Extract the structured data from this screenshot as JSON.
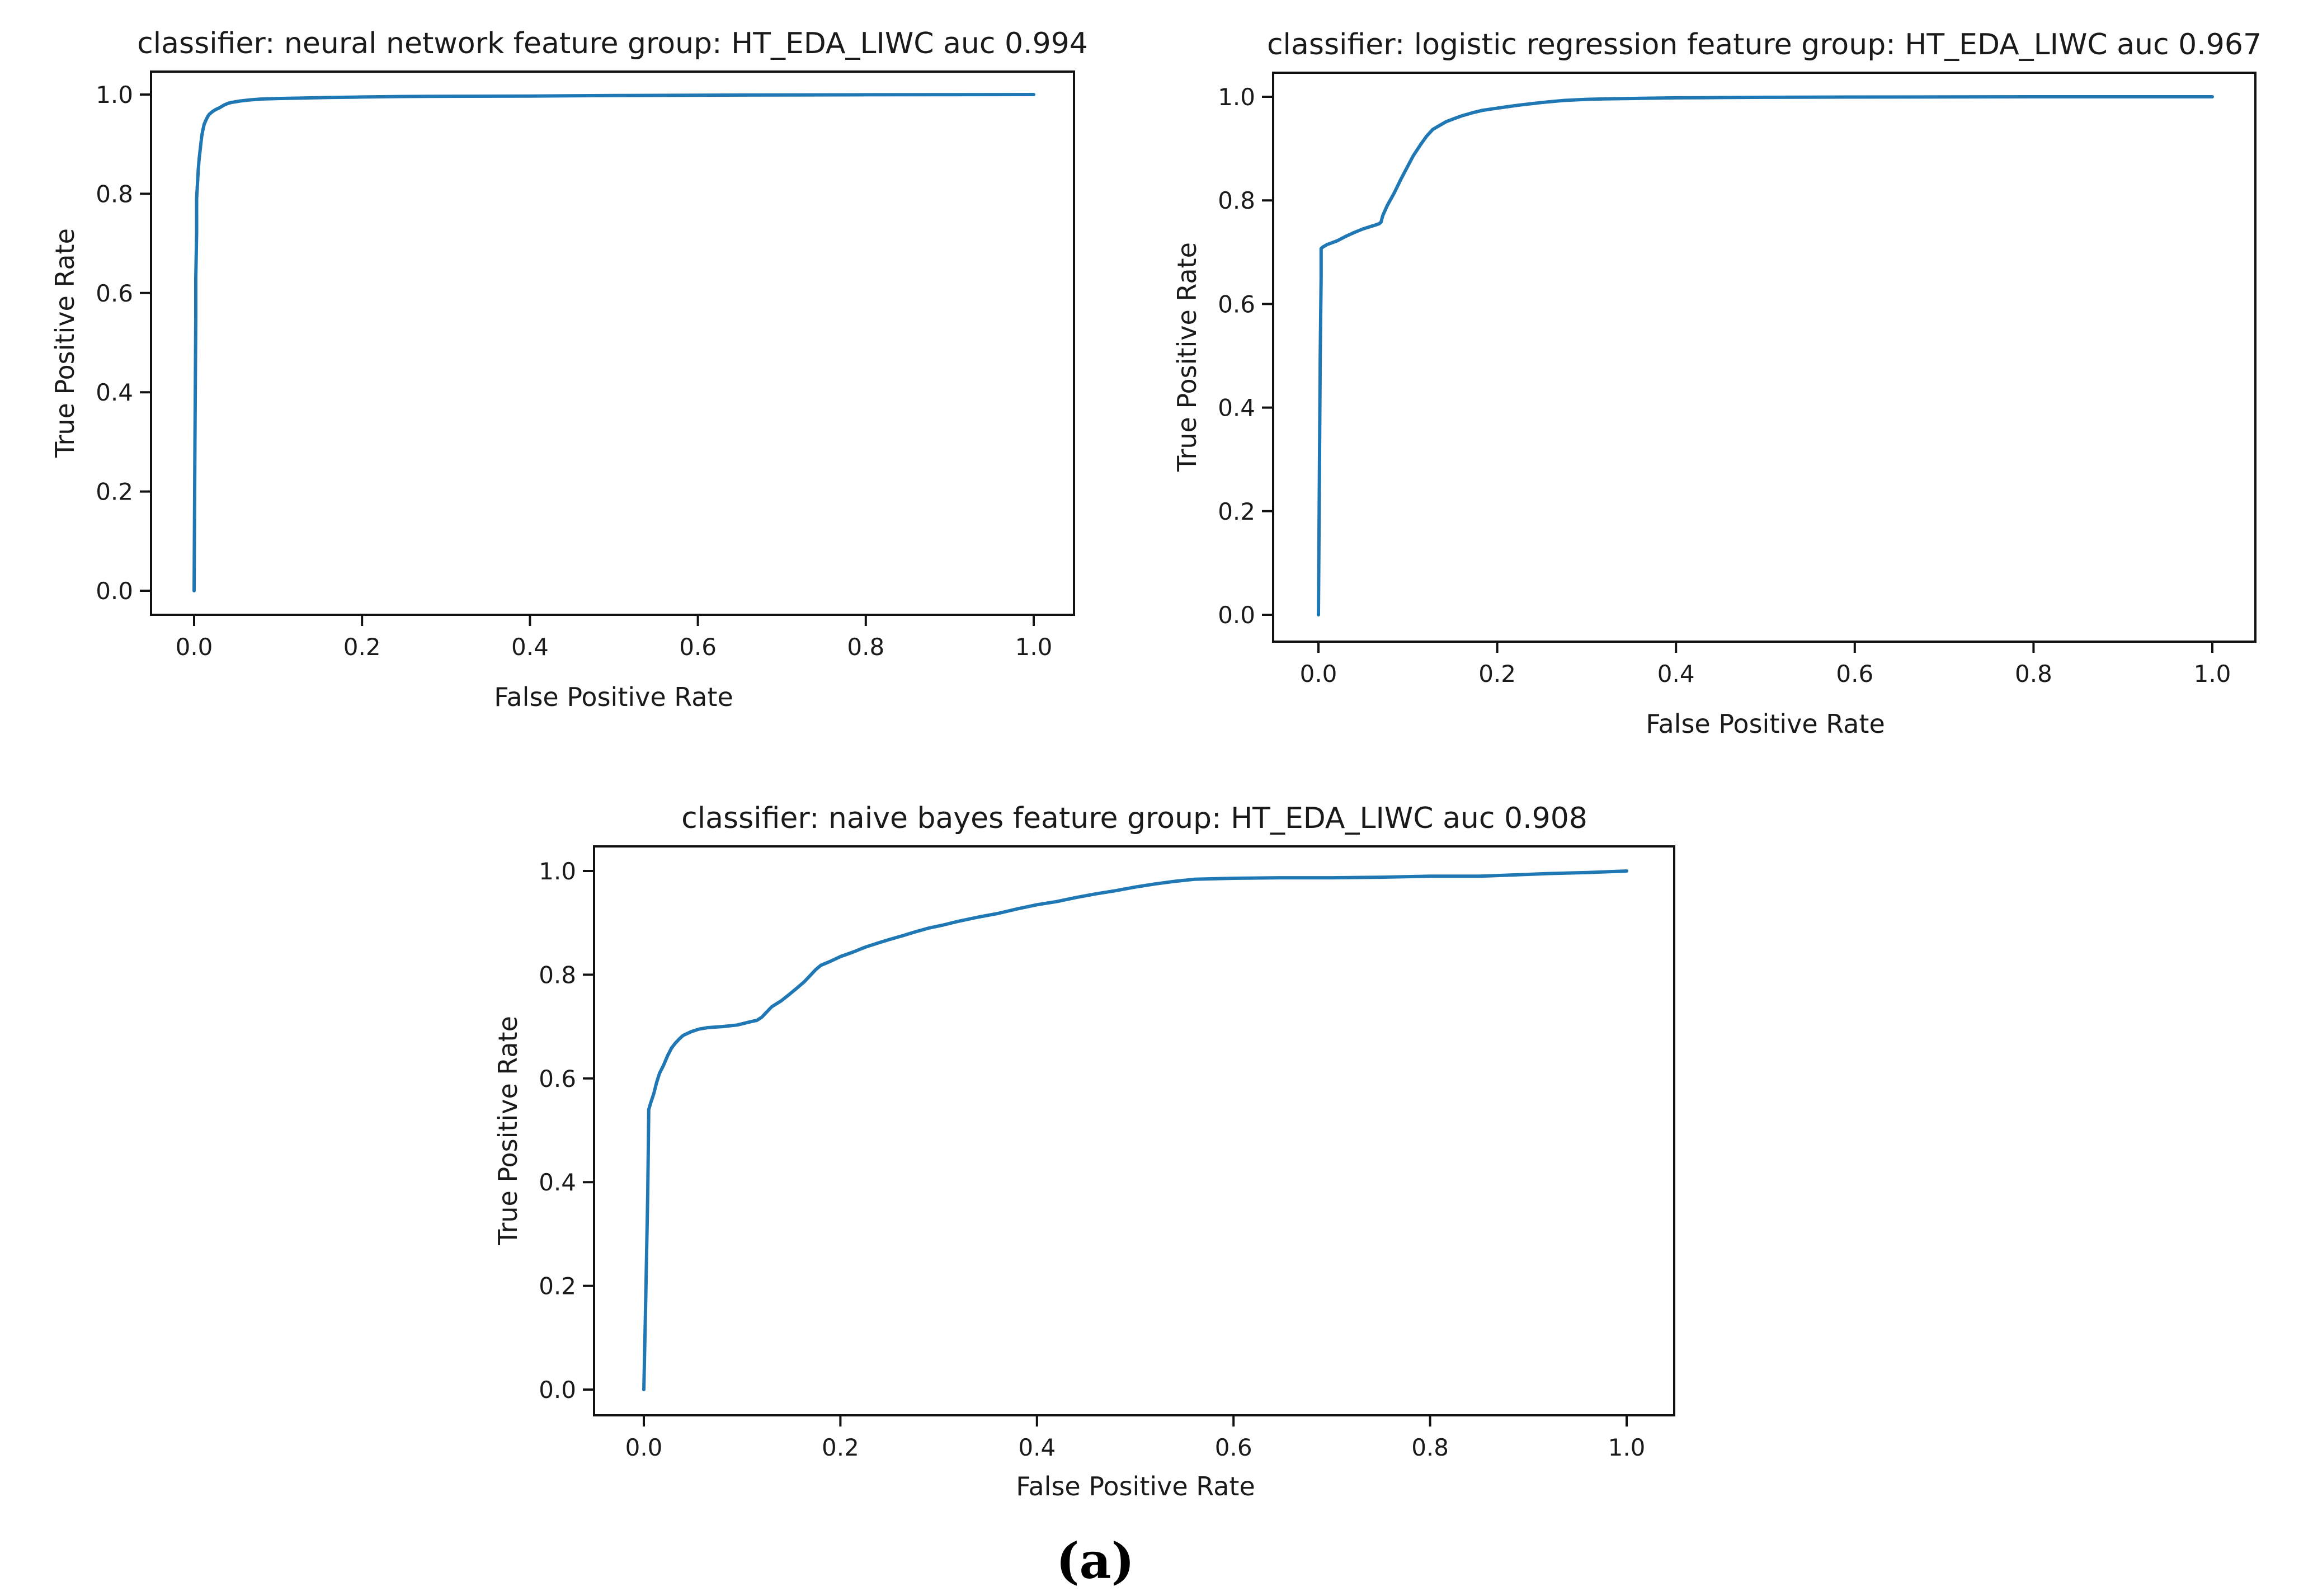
{
  "caption": "(a)",
  "colors": {
    "roc_line": "#1f77b4",
    "axis": "#111111",
    "text": "#1a1a1a",
    "background": "#ffffff"
  },
  "chart_data": [
    {
      "type": "line",
      "title": "classifier: neural network feature group: HT_EDA_LIWC auc 0.994",
      "classifier": "neural network",
      "feature_group": "HT_EDA_LIWC",
      "auc": 0.994,
      "xlabel": "False Positive Rate",
      "ylabel": "True Positive Rate",
      "xlim": [
        -0.05,
        1.05
      ],
      "ylim": [
        -0.05,
        1.05
      ],
      "xticks": [
        0.0,
        0.2,
        0.4,
        0.6,
        0.8,
        1.0
      ],
      "yticks": [
        0.0,
        0.2,
        0.4,
        0.6,
        0.8,
        1.0
      ],
      "grid": false,
      "legend": "none",
      "series": [
        {
          "name": "ROC curve",
          "points": [
            [
              0.0,
              0.0
            ],
            [
              0.001,
              0.3
            ],
            [
              0.002,
              0.55
            ],
            [
              0.002,
              0.63
            ],
            [
              0.003,
              0.72
            ],
            [
              0.003,
              0.79
            ],
            [
              0.004,
              0.82
            ],
            [
              0.005,
              0.85
            ],
            [
              0.006,
              0.87
            ],
            [
              0.007,
              0.885
            ],
            [
              0.008,
              0.9
            ],
            [
              0.009,
              0.915
            ],
            [
              0.01,
              0.925
            ],
            [
              0.012,
              0.94
            ],
            [
              0.014,
              0.948
            ],
            [
              0.016,
              0.955
            ],
            [
              0.018,
              0.96
            ],
            [
              0.02,
              0.963
            ],
            [
              0.023,
              0.967
            ],
            [
              0.026,
              0.97
            ],
            [
              0.03,
              0.973
            ],
            [
              0.033,
              0.976
            ],
            [
              0.036,
              0.979
            ],
            [
              0.04,
              0.982
            ],
            [
              0.044,
              0.984
            ],
            [
              0.048,
              0.985
            ],
            [
              0.055,
              0.987
            ],
            [
              0.065,
              0.989
            ],
            [
              0.08,
              0.991
            ],
            [
              0.1,
              0.992
            ],
            [
              0.13,
              0.993
            ],
            [
              0.16,
              0.994
            ],
            [
              0.2,
              0.995
            ],
            [
              0.25,
              0.996
            ],
            [
              0.3,
              0.9965
            ],
            [
              0.4,
              0.997
            ],
            [
              0.5,
              0.998
            ],
            [
              0.65,
              0.999
            ],
            [
              0.8,
              0.9995
            ],
            [
              1.0,
              1.0
            ]
          ]
        }
      ]
    },
    {
      "type": "line",
      "title": "classifier: logistic regression feature group: HT_EDA_LIWC auc 0.967",
      "classifier": "logistic regression",
      "feature_group": "HT_EDA_LIWC",
      "auc": 0.967,
      "xlabel": "False Positive Rate",
      "ylabel": "True Positive Rate",
      "xlim": [
        -0.05,
        1.05
      ],
      "ylim": [
        -0.05,
        1.05
      ],
      "xticks": [
        0.0,
        0.2,
        0.4,
        0.6,
        0.8,
        1.0
      ],
      "yticks": [
        0.0,
        0.2,
        0.4,
        0.6,
        0.8,
        1.0
      ],
      "grid": false,
      "legend": "none",
      "series": [
        {
          "name": "ROC curve",
          "points": [
            [
              0.0,
              0.0
            ],
            [
              0.001,
              0.25
            ],
            [
              0.002,
              0.5
            ],
            [
              0.003,
              0.65
            ],
            [
              0.003,
              0.707
            ],
            [
              0.005,
              0.71
            ],
            [
              0.01,
              0.715
            ],
            [
              0.015,
              0.718
            ],
            [
              0.021,
              0.722
            ],
            [
              0.03,
              0.73
            ],
            [
              0.04,
              0.738
            ],
            [
              0.05,
              0.745
            ],
            [
              0.063,
              0.752
            ],
            [
              0.068,
              0.755
            ],
            [
              0.07,
              0.758
            ],
            [
              0.072,
              0.771
            ],
            [
              0.077,
              0.79
            ],
            [
              0.085,
              0.815
            ],
            [
              0.092,
              0.84
            ],
            [
              0.099,
              0.863
            ],
            [
              0.106,
              0.886
            ],
            [
              0.114,
              0.907
            ],
            [
              0.121,
              0.924
            ],
            [
              0.128,
              0.937
            ],
            [
              0.136,
              0.945
            ],
            [
              0.143,
              0.952
            ],
            [
              0.152,
              0.958
            ],
            [
              0.16,
              0.963
            ],
            [
              0.172,
              0.969
            ],
            [
              0.184,
              0.974
            ],
            [
              0.196,
              0.977
            ],
            [
              0.208,
              0.98
            ],
            [
              0.225,
              0.984
            ],
            [
              0.25,
              0.989
            ],
            [
              0.275,
              0.993
            ],
            [
              0.3,
              0.995
            ],
            [
              0.32,
              0.996
            ],
            [
              0.36,
              0.997
            ],
            [
              0.4,
              0.998
            ],
            [
              0.45,
              0.9985
            ],
            [
              0.5,
              0.999
            ],
            [
              0.6,
              0.9995
            ],
            [
              0.8,
              1.0
            ],
            [
              1.0,
              1.0
            ]
          ]
        }
      ]
    },
    {
      "type": "line",
      "title": "classifier: naive bayes feature group: HT_EDA_LIWC auc 0.908",
      "classifier": "naive bayes",
      "feature_group": "HT_EDA_LIWC",
      "auc": 0.908,
      "xlabel": "False Positive Rate",
      "ylabel": "True Positive Rate",
      "xlim": [
        -0.05,
        1.05
      ],
      "ylim": [
        -0.05,
        1.05
      ],
      "xticks": [
        0.0,
        0.2,
        0.4,
        0.6,
        0.8,
        1.0
      ],
      "yticks": [
        0.0,
        0.2,
        0.4,
        0.6,
        0.8,
        1.0
      ],
      "grid": false,
      "legend": "none",
      "series": [
        {
          "name": "ROC curve",
          "points": [
            [
              0.0,
              0.0
            ],
            [
              0.002,
              0.18
            ],
            [
              0.004,
              0.38
            ],
            [
              0.005,
              0.54
            ],
            [
              0.007,
              0.553
            ],
            [
              0.01,
              0.57
            ],
            [
              0.013,
              0.592
            ],
            [
              0.016,
              0.61
            ],
            [
              0.02,
              0.625
            ],
            [
              0.024,
              0.643
            ],
            [
              0.028,
              0.658
            ],
            [
              0.032,
              0.668
            ],
            [
              0.036,
              0.676
            ],
            [
              0.04,
              0.683
            ],
            [
              0.048,
              0.69
            ],
            [
              0.056,
              0.695
            ],
            [
              0.065,
              0.698
            ],
            [
              0.08,
              0.7
            ],
            [
              0.095,
              0.703
            ],
            [
              0.11,
              0.71
            ],
            [
              0.115,
              0.712
            ],
            [
              0.12,
              0.718
            ],
            [
              0.125,
              0.728
            ],
            [
              0.13,
              0.738
            ],
            [
              0.135,
              0.744
            ],
            [
              0.14,
              0.75
            ],
            [
              0.148,
              0.762
            ],
            [
              0.155,
              0.773
            ],
            [
              0.163,
              0.786
            ],
            [
              0.17,
              0.8
            ],
            [
              0.175,
              0.81
            ],
            [
              0.18,
              0.818
            ],
            [
              0.19,
              0.826
            ],
            [
              0.2,
              0.835
            ],
            [
              0.212,
              0.843
            ],
            [
              0.225,
              0.853
            ],
            [
              0.238,
              0.861
            ],
            [
              0.25,
              0.868
            ],
            [
              0.263,
              0.875
            ],
            [
              0.275,
              0.882
            ],
            [
              0.29,
              0.89
            ],
            [
              0.305,
              0.896
            ],
            [
              0.32,
              0.903
            ],
            [
              0.34,
              0.911
            ],
            [
              0.36,
              0.918
            ],
            [
              0.38,
              0.927
            ],
            [
              0.4,
              0.935
            ],
            [
              0.42,
              0.941
            ],
            [
              0.44,
              0.949
            ],
            [
              0.46,
              0.956
            ],
            [
              0.48,
              0.962
            ],
            [
              0.5,
              0.969
            ],
            [
              0.52,
              0.975
            ],
            [
              0.54,
              0.98
            ],
            [
              0.56,
              0.984
            ],
            [
              0.6,
              0.986
            ],
            [
              0.65,
              0.987
            ],
            [
              0.7,
              0.987
            ],
            [
              0.75,
              0.988
            ],
            [
              0.8,
              0.99
            ],
            [
              0.85,
              0.99
            ],
            [
              0.88,
              0.992
            ],
            [
              0.92,
              0.995
            ],
            [
              0.96,
              0.997
            ],
            [
              1.0,
              1.0
            ]
          ]
        }
      ]
    }
  ]
}
